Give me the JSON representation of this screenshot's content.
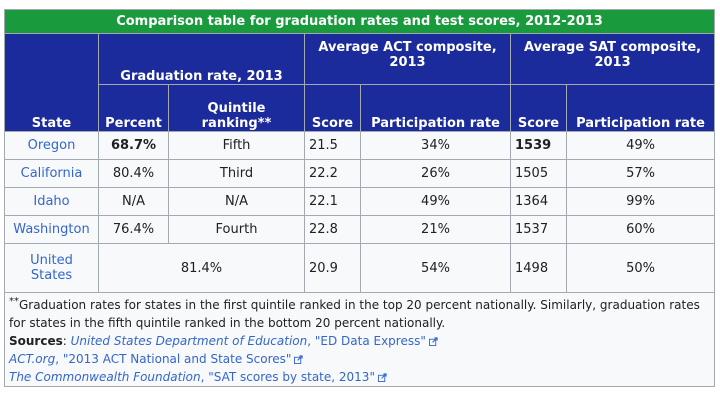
{
  "table": {
    "title": "Comparison table for graduation rates and test scores, 2012-2013",
    "headers": {
      "state": "State",
      "grad_group": "Graduation rate, 2013",
      "act_group": "Average ACT composite, 2013",
      "sat_group": "Average SAT composite, 2013",
      "percent": "Percent",
      "quintile": "Quintile ranking**",
      "act_score": "Score",
      "act_participation": "Participation rate",
      "sat_score": "Score",
      "sat_participation": "Participation rate"
    },
    "rows": [
      {
        "state": "Oregon",
        "percent": "68.7%",
        "quintile": "Fifth",
        "act_score": "21.5",
        "act_participation": "34%",
        "sat_score": "1539",
        "sat_participation": "49%"
      },
      {
        "state": "California",
        "percent": "80.4%",
        "quintile": "Third",
        "act_score": "22.2",
        "act_participation": "26%",
        "sat_score": "1505",
        "sat_participation": "57%"
      },
      {
        "state": "Idaho",
        "percent": "N/A",
        "quintile": "N/A",
        "act_score": "22.1",
        "act_participation": "49%",
        "sat_score": "1364",
        "sat_participation": "99%"
      },
      {
        "state": "Washington",
        "percent": "76.4%",
        "quintile": "Fourth",
        "act_score": "22.8",
        "act_participation": "21%",
        "sat_score": "1537",
        "sat_participation": "60%"
      },
      {
        "state": "United States",
        "combined_grad": "81.4%",
        "act_score": "20.9",
        "act_participation": "54%",
        "sat_score": "1498",
        "sat_participation": "50%"
      }
    ],
    "footnote": {
      "marker": "**",
      "text": "Graduation rates for states in the first quintile ranked in the top 20 percent nationally. Similarly, graduation rates for states in the fifth quintile ranked in the bottom 20 percent nationally.",
      "sources_label": "Sources",
      "sources": [
        {
          "title": "United States Department of Education",
          "doc": "\"ED Data Express\""
        },
        {
          "title": "ACT.org",
          "doc": "\"2013 ACT National and State Scores\""
        },
        {
          "title": "The Commonwealth Foundation",
          "doc": "\"SAT scores by state, 2013\""
        }
      ]
    }
  },
  "icons": {
    "external_link": "external-link-icon"
  },
  "colors": {
    "title_bg": "#199a3c",
    "header_bg": "#1b2b9b",
    "link": "#3366cc",
    "cell_bg": "#f8f9fa"
  }
}
